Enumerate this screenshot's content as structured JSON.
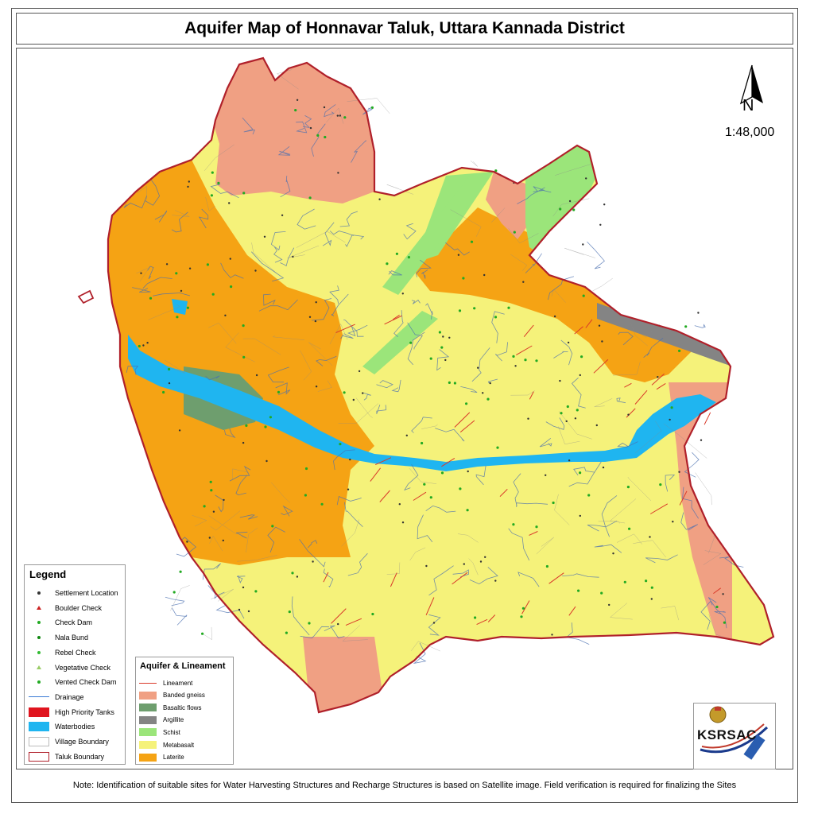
{
  "title": "Aquifer Map of Honnavar Taluk, Uttara Kannada District",
  "north_label": "N",
  "scale": "1:48,000",
  "legend": {
    "title": "Legend",
    "items": [
      {
        "label": "Settlement Location",
        "symbol": "dot",
        "color": "#333333"
      },
      {
        "label": "Boulder Check",
        "symbol": "triangle",
        "color": "#cc2222"
      },
      {
        "label": "Check Dam",
        "symbol": "dot",
        "color": "#22aa22"
      },
      {
        "label": "Nala Bund",
        "symbol": "dot",
        "color": "#118811"
      },
      {
        "label": "Rebel Check",
        "symbol": "dot",
        "color": "#33bb33"
      },
      {
        "label": "Vegetative Check",
        "symbol": "triangle",
        "color": "#99cc66"
      },
      {
        "label": "Vented Check Dam",
        "symbol": "dot",
        "color": "#22aa22"
      },
      {
        "label": "Drainage",
        "symbol": "line",
        "color": "#3a7bd5"
      },
      {
        "label": "High Priority Tanks",
        "symbol": "swatch",
        "color": "#e0141e"
      },
      {
        "label": "Waterbodies",
        "symbol": "swatch",
        "color": "#1fb5f0"
      },
      {
        "label": "Village Boundary",
        "symbol": "outline",
        "color": "#bbbbbb"
      },
      {
        "label": "Taluk Boundary",
        "symbol": "outline",
        "color": "#b0202a"
      }
    ]
  },
  "aquifer_legend": {
    "title": "Aquifer & Lineament",
    "items": [
      {
        "label": "Lineament",
        "symbol": "line",
        "color": "#d93a2a"
      },
      {
        "label": "Banded gneiss",
        "symbol": "swatch",
        "color": "#f0a083"
      },
      {
        "label": "Basaltic flows",
        "symbol": "swatch",
        "color": "#6e9e6e"
      },
      {
        "label": "Argillite",
        "symbol": "swatch",
        "color": "#848484"
      },
      {
        "label": "Schist",
        "symbol": "swatch",
        "color": "#9be57a"
      },
      {
        "label": "Metabasalt",
        "symbol": "swatch",
        "color": "#f5f27a"
      },
      {
        "label": "Laterite",
        "symbol": "swatch",
        "color": "#f5a314"
      }
    ]
  },
  "logo_text": "KSRSAC",
  "note": "Note:  Identification of suitable sites for Water Harvesting Structures and  Recharge Structures is based on Satellite image. Field verification is  required for  finalizing the Sites",
  "colors": {
    "metabasalt": "#f5f27a",
    "laterite": "#f5a314",
    "banded_gneiss": "#f0a083",
    "schist": "#9be57a",
    "argillite": "#848484",
    "basaltic_flows": "#6e9e6e",
    "waterbodies": "#1fb5f0",
    "taluk_boundary": "#b0202a",
    "drainage": "#3a7bd5",
    "lineament": "#d93a2a"
  }
}
